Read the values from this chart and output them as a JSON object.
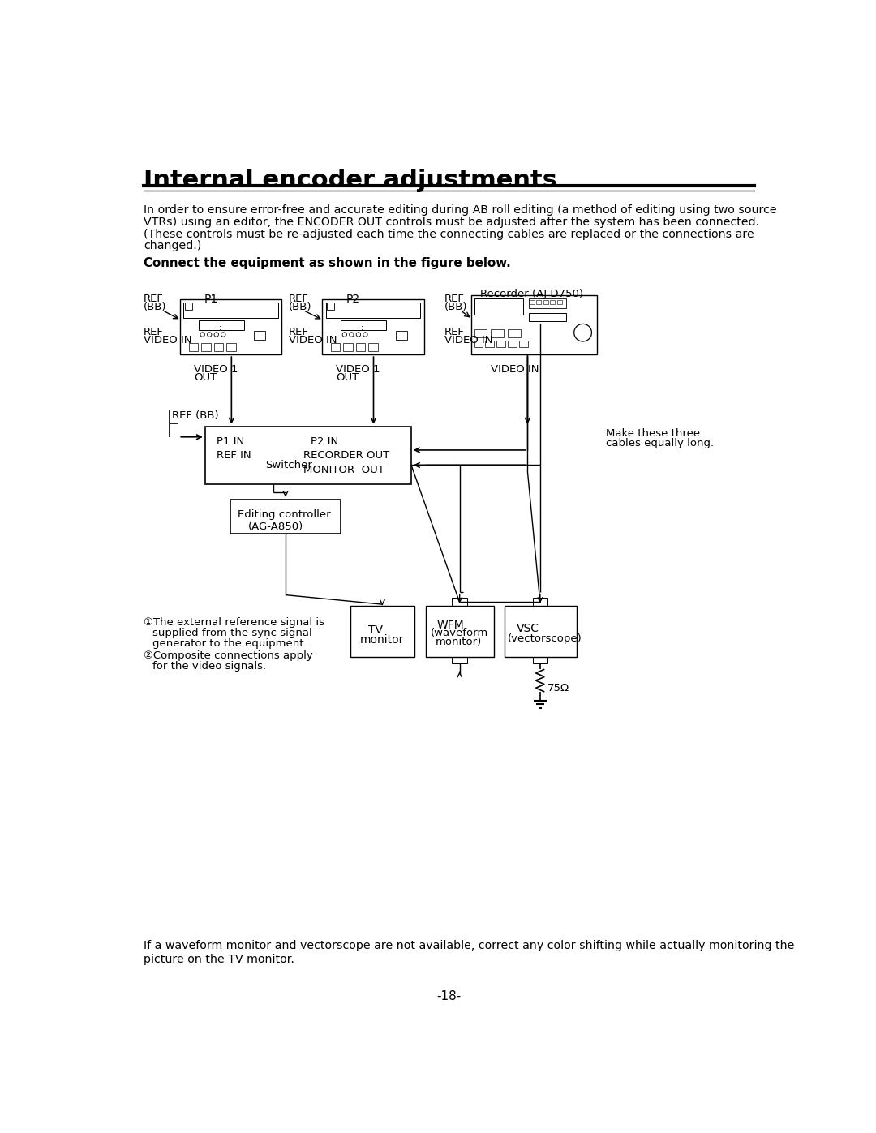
{
  "title": "Internal encoder adjustments",
  "page_number": "-18-",
  "intro_lines": [
    "In order to ensure error-free and accurate editing during AB roll editing (a method of editing using two source",
    "VTRs) using an editor, the ENCODER OUT controls must be adjusted after the system has been connected.",
    "(These controls must be re-adjusted each time the connecting cables are replaced or the connections are",
    "changed.)"
  ],
  "bold_instruction": "Connect the equipment as shown in the figure below.",
  "footnote1a": "①The external reference signal is",
  "footnote1b": "supplied from the sync signal",
  "footnote1c": "generator to the equipment.",
  "footnote2a": "②Composite connections apply",
  "footnote2b": "for the video signals.",
  "bottom_lines": [
    "If a waveform monitor and vectorscope are not available, correct any color shifting while actually monitoring the",
    "picture on the TV monitor."
  ]
}
